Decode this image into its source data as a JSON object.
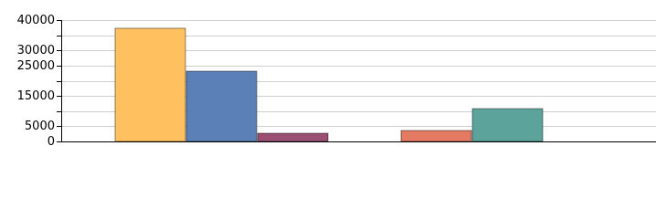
{
  "chart_data": {
    "type": "bar",
    "categories": [
      null,
      null
    ],
    "series": [
      {
        "colors": [
          "#ffc060",
          "#e47a62"
        ],
        "values": [
          37300,
          3600
        ]
      },
      {
        "colors": [
          "#5b80b8",
          "#5ba39b"
        ],
        "values": [
          23150,
          10800
        ]
      },
      {
        "colors": [
          "#9b4f73",
          "#9b4f73"
        ],
        "values": [
          2700,
          null
        ]
      }
    ],
    "ylim": [
      0,
      40000
    ],
    "yticks": [
      0,
      5000,
      15000,
      25000,
      30000,
      40000
    ],
    "minor_yticks": [
      10000,
      20000,
      35000
    ],
    "grid": true
  }
}
